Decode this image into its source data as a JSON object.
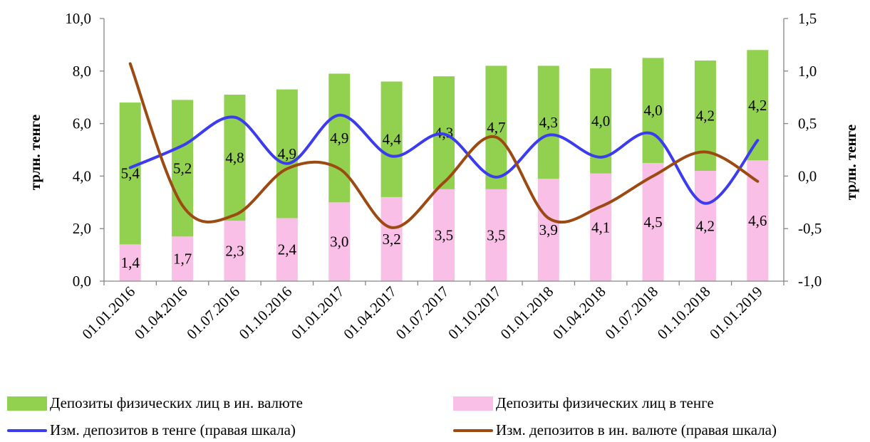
{
  "chart_data": {
    "type": "bar",
    "categories": [
      "01.01.2016",
      "01.04.2016",
      "01.07.2016",
      "01.10.2016",
      "01.01.2017",
      "01.04.2017",
      "01.07.2017",
      "01.10.2017",
      "01.01.2018",
      "01.04.2018",
      "01.07.2018",
      "01.10.2018",
      "01.01.2019"
    ],
    "bar_series": [
      {
        "name": "Депозиты физических лиц в тенге",
        "color": "#f9bfe6",
        "values": [
          1.4,
          1.7,
          2.3,
          2.4,
          3.0,
          3.2,
          3.5,
          3.5,
          3.9,
          4.1,
          4.5,
          4.2,
          4.6
        ],
        "labels": [
          "1,4",
          "1,7",
          "2,3",
          "2,4",
          "3,0",
          "3,2",
          "3,5",
          "3,5",
          "3,9",
          "4,1",
          "4,5",
          "4,2",
          "4,6"
        ]
      },
      {
        "name": "Депозиты физических лиц в ин. валюте",
        "color": "#92d050",
        "values": [
          5.4,
          5.2,
          4.8,
          4.9,
          4.9,
          4.4,
          4.3,
          4.7,
          4.3,
          4.0,
          4.0,
          4.2,
          4.2
        ],
        "labels": [
          "5,4",
          "5,2",
          "4,8",
          "4,9",
          "4,9",
          "4,4",
          "4,3",
          "4,7",
          "4,3",
          "4,0",
          "4,0",
          "4,2",
          "4,2"
        ]
      }
    ],
    "line_series": [
      {
        "name": "Изм. депозитов в тенге (правая шкала)",
        "color": "#3b3bf0",
        "values": [
          0.08,
          0.29,
          0.56,
          0.12,
          0.58,
          0.19,
          0.4,
          -0.01,
          0.39,
          0.18,
          0.4,
          -0.26,
          0.34
        ]
      },
      {
        "name": "Изм. депозитов в ин. валюте (правая шкала)",
        "color": "#9c4a12",
        "values": [
          1.07,
          -0.28,
          -0.37,
          0.07,
          0.07,
          -0.49,
          -0.06,
          0.37,
          -0.4,
          -0.29,
          0.0,
          0.23,
          -0.05
        ]
      }
    ],
    "y_left": {
      "label": "трлн. тенге",
      "min": 0,
      "max": 10,
      "step": 2,
      "tick_labels": [
        "0,0",
        "2,0",
        "4,0",
        "6,0",
        "8,0",
        "10,0"
      ]
    },
    "y_right": {
      "label": "трлн. тенге",
      "min": -1,
      "max": 1.5,
      "step": 0.5,
      "tick_labels": [
        "-1,0",
        "-0,5",
        "0,0",
        "0,5",
        "1,0",
        "1,5"
      ]
    },
    "legend_position": "bottom",
    "grid": false
  },
  "legend": {
    "items": [
      {
        "label": "Депозиты физических лиц в ин. валюте",
        "kind": "box",
        "color": "#92d050"
      },
      {
        "label": "Депозиты физических лиц в тенге",
        "kind": "box",
        "color": "#f9bfe6"
      },
      {
        "label": "Изм. депозитов в тенге (правая шкала)",
        "kind": "line",
        "color": "#3b3bf0"
      },
      {
        "label": "Изм. депозитов в ин. валюте (правая шкала)",
        "kind": "line",
        "color": "#9c4a12"
      }
    ]
  }
}
